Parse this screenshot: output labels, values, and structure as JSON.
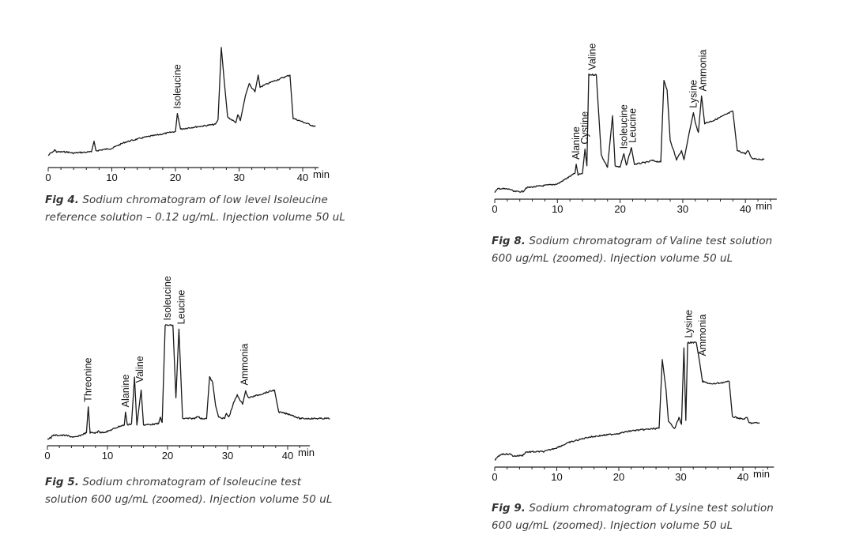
{
  "chart_data": [
    {
      "id": "fig4",
      "type": "line",
      "caption_prefix": "Fig 4.",
      "caption_line1": " Sodium chromatogram of low level Isoleucine",
      "caption_line2": "reference solution – 0.12 ug/mL. Injection volume 50 uL",
      "xlabel": "min",
      "xlim": [
        0,
        42.5
      ],
      "xticks": [
        "0",
        "10",
        "20",
        "30",
        "40"
      ],
      "line_color": "#1a1a1a",
      "series": [
        {
          "points": [
            [
              0,
              10
            ],
            [
              0.4,
              12
            ],
            [
              0.8,
              13
            ],
            [
              1,
              15
            ],
            [
              1.3,
              13
            ],
            [
              3,
              13
            ],
            [
              3.8,
              12
            ],
            [
              5,
              12.5
            ],
            [
              6.8,
              13
            ],
            [
              7.2,
              22
            ],
            [
              7.5,
              14
            ],
            [
              10,
              16
            ],
            [
              12,
              21
            ],
            [
              15,
              25
            ],
            [
              19,
              29
            ],
            [
              20,
              30
            ],
            [
              20.3,
              45
            ],
            [
              20.8,
              32
            ],
            [
              22,
              33
            ],
            [
              26.3,
              36
            ],
            [
              26.7,
              40
            ],
            [
              27.2,
              100
            ],
            [
              27.7,
              70
            ],
            [
              28.2,
              42
            ],
            [
              29.5,
              37.5
            ],
            [
              29.8,
              44
            ],
            [
              30.2,
              39
            ],
            [
              31,
              60
            ],
            [
              31.6,
              70
            ],
            [
              32,
              66
            ],
            [
              32.5,
              63
            ],
            [
              33,
              77
            ],
            [
              33.3,
              67
            ],
            [
              35,
              71
            ],
            [
              38,
              77
            ],
            [
              38.5,
              41
            ],
            [
              40,
              38
            ],
            [
              42,
              34
            ]
          ]
        }
      ],
      "annotations": [
        {
          "label": "Isoleucine",
          "x": 20.3,
          "y": 45
        }
      ]
    },
    {
      "id": "fig8",
      "type": "line",
      "caption_prefix": "Fig 8.",
      "caption_line1": " Sodium chromatogram of Valine test solution",
      "caption_line2": "600 ug/mL (zoomed). Injection volume 50 uL",
      "xlabel": "min",
      "xlim": [
        0,
        45
      ],
      "xticks": [
        "0",
        "10",
        "20",
        "30",
        "40"
      ],
      "line_color": "#1a1a1a",
      "series": [
        {
          "points": [
            [
              0,
              4.7
            ],
            [
              0.6,
              7
            ],
            [
              2.5,
              6.5
            ],
            [
              3,
              5
            ],
            [
              4.5,
              5
            ],
            [
              5,
              7.5
            ],
            [
              7,
              8.5
            ],
            [
              10,
              10
            ],
            [
              12,
              15
            ],
            [
              12.8,
              17
            ],
            [
              13,
              23
            ],
            [
              13.3,
              16
            ],
            [
              14,
              17
            ],
            [
              14.4,
              33
            ],
            [
              14.7,
              22
            ],
            [
              15,
              82
            ],
            [
              16.2,
              82
            ],
            [
              17,
              29
            ],
            [
              18,
              21
            ],
            [
              18.8,
              55
            ],
            [
              19.2,
              22
            ],
            [
              20,
              21
            ],
            [
              20.6,
              30
            ],
            [
              21,
              22
            ],
            [
              21.8,
              34
            ],
            [
              22.3,
              23
            ],
            [
              24.5,
              24.5
            ],
            [
              25,
              25.5
            ],
            [
              26.5,
              24.5
            ],
            [
              27,
              78
            ],
            [
              27.5,
              72
            ],
            [
              28,
              39
            ],
            [
              29,
              26
            ],
            [
              29.8,
              32
            ],
            [
              30.2,
              26
            ],
            [
              31,
              43
            ],
            [
              31.7,
              57
            ],
            [
              32,
              50
            ],
            [
              32.5,
              44
            ],
            [
              33,
              68
            ],
            [
              33.5,
              50
            ],
            [
              35,
              52
            ],
            [
              38,
              58
            ],
            [
              38.7,
              32
            ],
            [
              40,
              30
            ],
            [
              40.4,
              32
            ],
            [
              41,
              27
            ],
            [
              43,
              26
            ]
          ]
        }
      ],
      "annotations": [
        {
          "label": "Alanine",
          "x": 13,
          "y": 23
        },
        {
          "label": "Cystine",
          "x": 14.4,
          "y": 33
        },
        {
          "label": "Valine",
          "x": 15.6,
          "y": 82
        },
        {
          "label": "Isoleucine",
          "x": 20.6,
          "y": 30
        },
        {
          "label": "Leucine",
          "x": 22,
          "y": 34
        },
        {
          "label": "Lysine",
          "x": 31.7,
          "y": 57
        },
        {
          "label": "Ammonia",
          "x": 33.2,
          "y": 68
        }
      ]
    },
    {
      "id": "fig5",
      "type": "line",
      "caption_prefix": "Fig 5.",
      "caption_line1": " Sodium chromatogram of Isoleucine test",
      "caption_line2": "solution 600 ug/mL (zoomed). Injection volume 50 uL",
      "xlabel": "min",
      "xlim": [
        0,
        43.7
      ],
      "xticks": [
        "0",
        "10",
        "20",
        "30",
        "40"
      ],
      "line_color": "#1a1a1a",
      "series": [
        {
          "points": [
            [
              0,
              5.5
            ],
            [
              0.6,
              6
            ],
            [
              0.8,
              8
            ],
            [
              3,
              8
            ],
            [
              4.5,
              6.5
            ],
            [
              5,
              7
            ],
            [
              6.5,
              10
            ],
            [
              6.8,
              30
            ],
            [
              7.1,
              10
            ],
            [
              8.3,
              10
            ],
            [
              8.5,
              12
            ],
            [
              8.8,
              10
            ],
            [
              10,
              11
            ],
            [
              12,
              15
            ],
            [
              12.8,
              16
            ],
            [
              13,
              26
            ],
            [
              13.3,
              16
            ],
            [
              14,
              17
            ],
            [
              14.5,
              53
            ],
            [
              14.9,
              16
            ],
            [
              15.6,
              43
            ],
            [
              16,
              16
            ],
            [
              18.5,
              17
            ],
            [
              18.8,
              22
            ],
            [
              19.1,
              18
            ],
            [
              19.6,
              93
            ],
            [
              20.9,
              93
            ],
            [
              21.4,
              37
            ],
            [
              21.9,
              90
            ],
            [
              22.5,
              21
            ],
            [
              24.5,
              21
            ],
            [
              25,
              23
            ],
            [
              25.5,
              21
            ],
            [
              26.5,
              21
            ],
            [
              27,
              53
            ],
            [
              27.5,
              49
            ],
            [
              28,
              31
            ],
            [
              28.5,
              22
            ],
            [
              29.5,
              21
            ],
            [
              29.8,
              25
            ],
            [
              30.2,
              22
            ],
            [
              31,
              33
            ],
            [
              31.6,
              39
            ],
            [
              32,
              36
            ],
            [
              32.5,
              32
            ],
            [
              33,
              42
            ],
            [
              33.5,
              37
            ],
            [
              35,
              39
            ],
            [
              37.8,
              43
            ],
            [
              38.5,
              26
            ],
            [
              40.5,
              24
            ],
            [
              41,
              23
            ],
            [
              42,
              21
            ],
            [
              47,
              21
            ]
          ]
        }
      ],
      "annotations": [
        {
          "label": "Threonine",
          "x": 6.8,
          "y": 30
        },
        {
          "label": "Alanine",
          "x": 13,
          "y": 26
        },
        {
          "label": "Valine",
          "x": 15.4,
          "y": 45
        },
        {
          "label": "Isoleucine",
          "x": 20,
          "y": 93
        },
        {
          "label": "Leucine",
          "x": 22.3,
          "y": 90
        },
        {
          "label": "Ammonia",
          "x": 32.8,
          "y": 43
        }
      ]
    },
    {
      "id": "fig9",
      "type": "line",
      "caption_prefix": "Fig 9.",
      "caption_line1": " Sodium chromatogram of Lysine test solution",
      "caption_line2": "600 ug/mL (zoomed). Injection volume 50 uL",
      "xlabel": "min",
      "xlim": [
        0,
        45
      ],
      "xticks": [
        "0",
        "10",
        "20",
        "30",
        "40"
      ],
      "line_color": "#1a1a1a",
      "series": [
        {
          "points": [
            [
              0,
              5.5
            ],
            [
              0.8,
              9
            ],
            [
              1,
              10
            ],
            [
              2.5,
              10
            ],
            [
              3,
              8.5
            ],
            [
              4.5,
              9
            ],
            [
              5,
              11.6
            ],
            [
              8,
              12
            ],
            [
              10,
              15
            ],
            [
              12,
              19
            ],
            [
              15,
              23
            ],
            [
              20,
              26
            ],
            [
              22,
              28
            ],
            [
              26.5,
              30
            ],
            [
              27,
              83
            ],
            [
              27.6,
              60
            ],
            [
              28,
              35
            ],
            [
              29,
              30
            ],
            [
              29.7,
              38
            ],
            [
              30.1,
              33
            ],
            [
              30.5,
              92
            ],
            [
              30.8,
              36
            ],
            [
              31.1,
              96
            ],
            [
              32.5,
              96
            ],
            [
              33,
              82
            ],
            [
              33.5,
              66
            ],
            [
              35,
              64
            ],
            [
              37.8,
              66
            ],
            [
              38.3,
              39
            ],
            [
              40,
              37
            ],
            [
              40.7,
              38
            ],
            [
              41,
              34
            ],
            [
              42.7,
              34
            ]
          ]
        }
      ],
      "annotations": [
        {
          "label": "Lysine",
          "x": 31.3,
          "y": 96
        },
        {
          "label": "Ammonia",
          "x": 33.5,
          "y": 82
        }
      ]
    }
  ]
}
